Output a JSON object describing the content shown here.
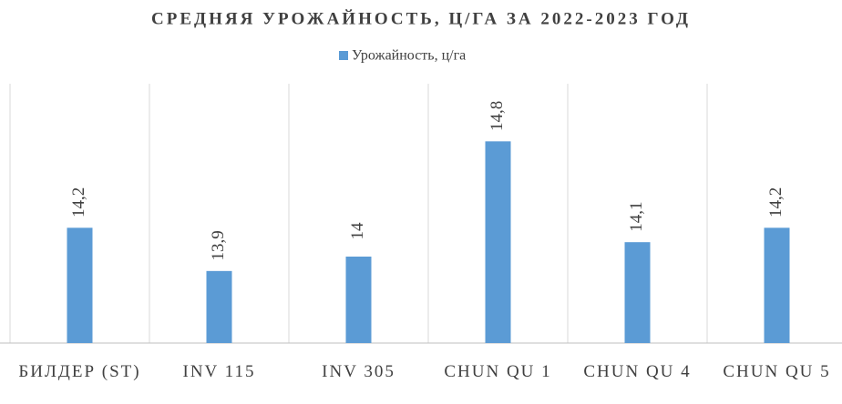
{
  "chart_data": {
    "type": "bar",
    "title": "СРЕДНЯЯ УРОЖАЙНОСТЬ, Ц/ГА ЗА 2022-2023 ГОД",
    "categories": [
      "БИЛДЕР (ST)",
      "INV 115",
      "INV 305",
      "CHUN QU 1",
      "CHUN QU 4",
      "CHUN QU 5"
    ],
    "series": [
      {
        "name": "Урожайность, ц/га",
        "color": "#5b9bd5",
        "values": [
          14.2,
          13.9,
          14,
          14.8,
          14.1,
          14.2
        ],
        "value_labels": [
          "14,2",
          "13,9",
          "14",
          "14,8",
          "14,1",
          "14,2"
        ]
      }
    ],
    "ylim": [
      13.4,
      15.2
    ],
    "legend": "top"
  }
}
